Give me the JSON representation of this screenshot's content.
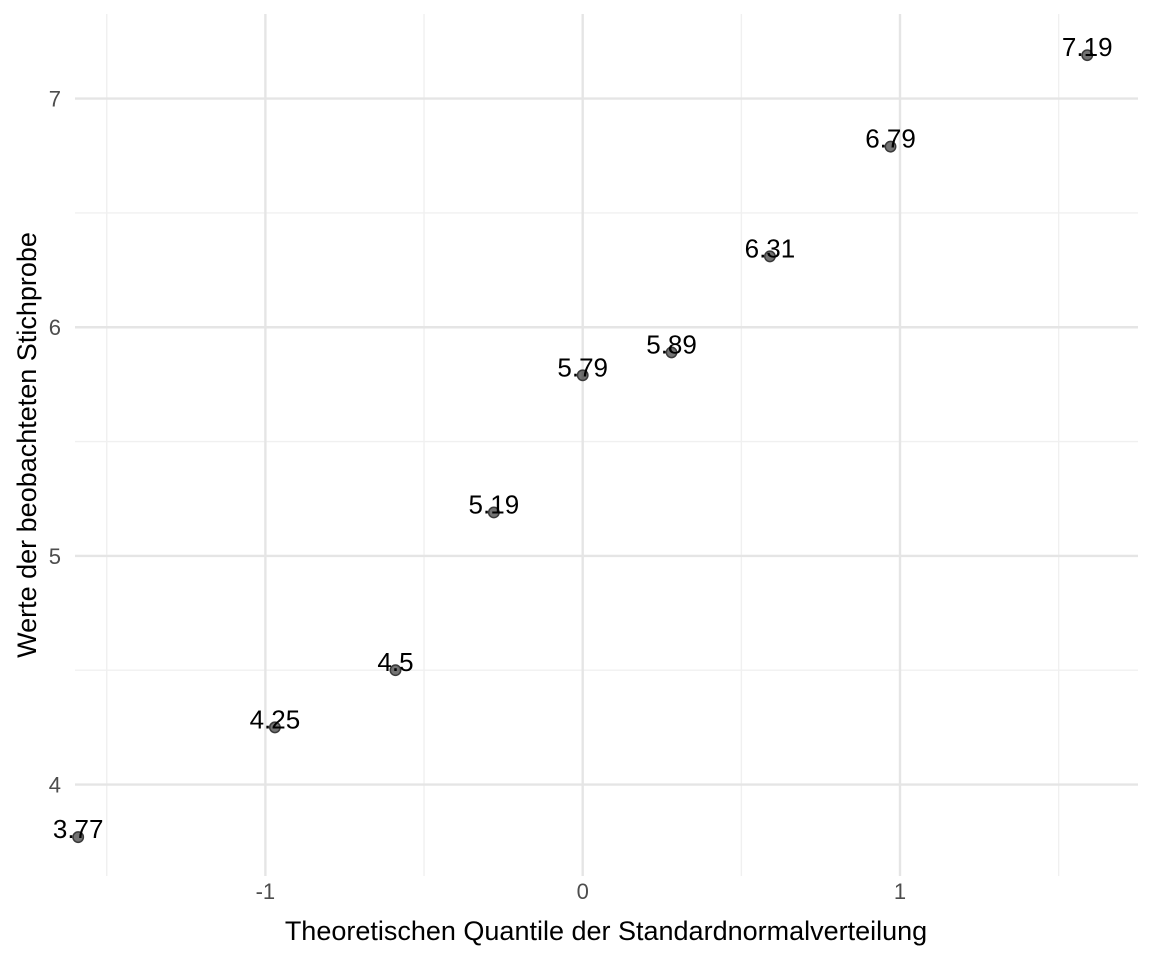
{
  "chart_data": {
    "type": "scatter",
    "xlabel": "Theoretischen Quantile der Standardnormalverteilung",
    "ylabel": "Werte der beobachteten Stichprobe",
    "xlim": [
      -1.6,
      1.75
    ],
    "ylim": [
      3.6,
      7.37
    ],
    "x_ticks": [
      -1,
      0,
      1
    ],
    "x_tick_labels": [
      "-1",
      "0",
      "1"
    ],
    "y_ticks": [
      4,
      5,
      6,
      7
    ],
    "y_tick_labels": [
      "4",
      "5",
      "6",
      "7"
    ],
    "grid": true,
    "points": [
      {
        "x": -1.59,
        "y": 3.77,
        "label": "3.77"
      },
      {
        "x": -0.97,
        "y": 4.25,
        "label": "4.25"
      },
      {
        "x": -0.59,
        "y": 4.5,
        "label": "4.5"
      },
      {
        "x": -0.28,
        "y": 5.19,
        "label": "5.19"
      },
      {
        "x": 0.0,
        "y": 5.79,
        "label": "5.79"
      },
      {
        "x": 0.28,
        "y": 5.89,
        "label": "5.89"
      },
      {
        "x": 0.59,
        "y": 6.31,
        "label": "6.31"
      },
      {
        "x": 0.97,
        "y": 6.79,
        "label": "6.79"
      },
      {
        "x": 1.59,
        "y": 7.19,
        "label": "7.19"
      }
    ]
  }
}
